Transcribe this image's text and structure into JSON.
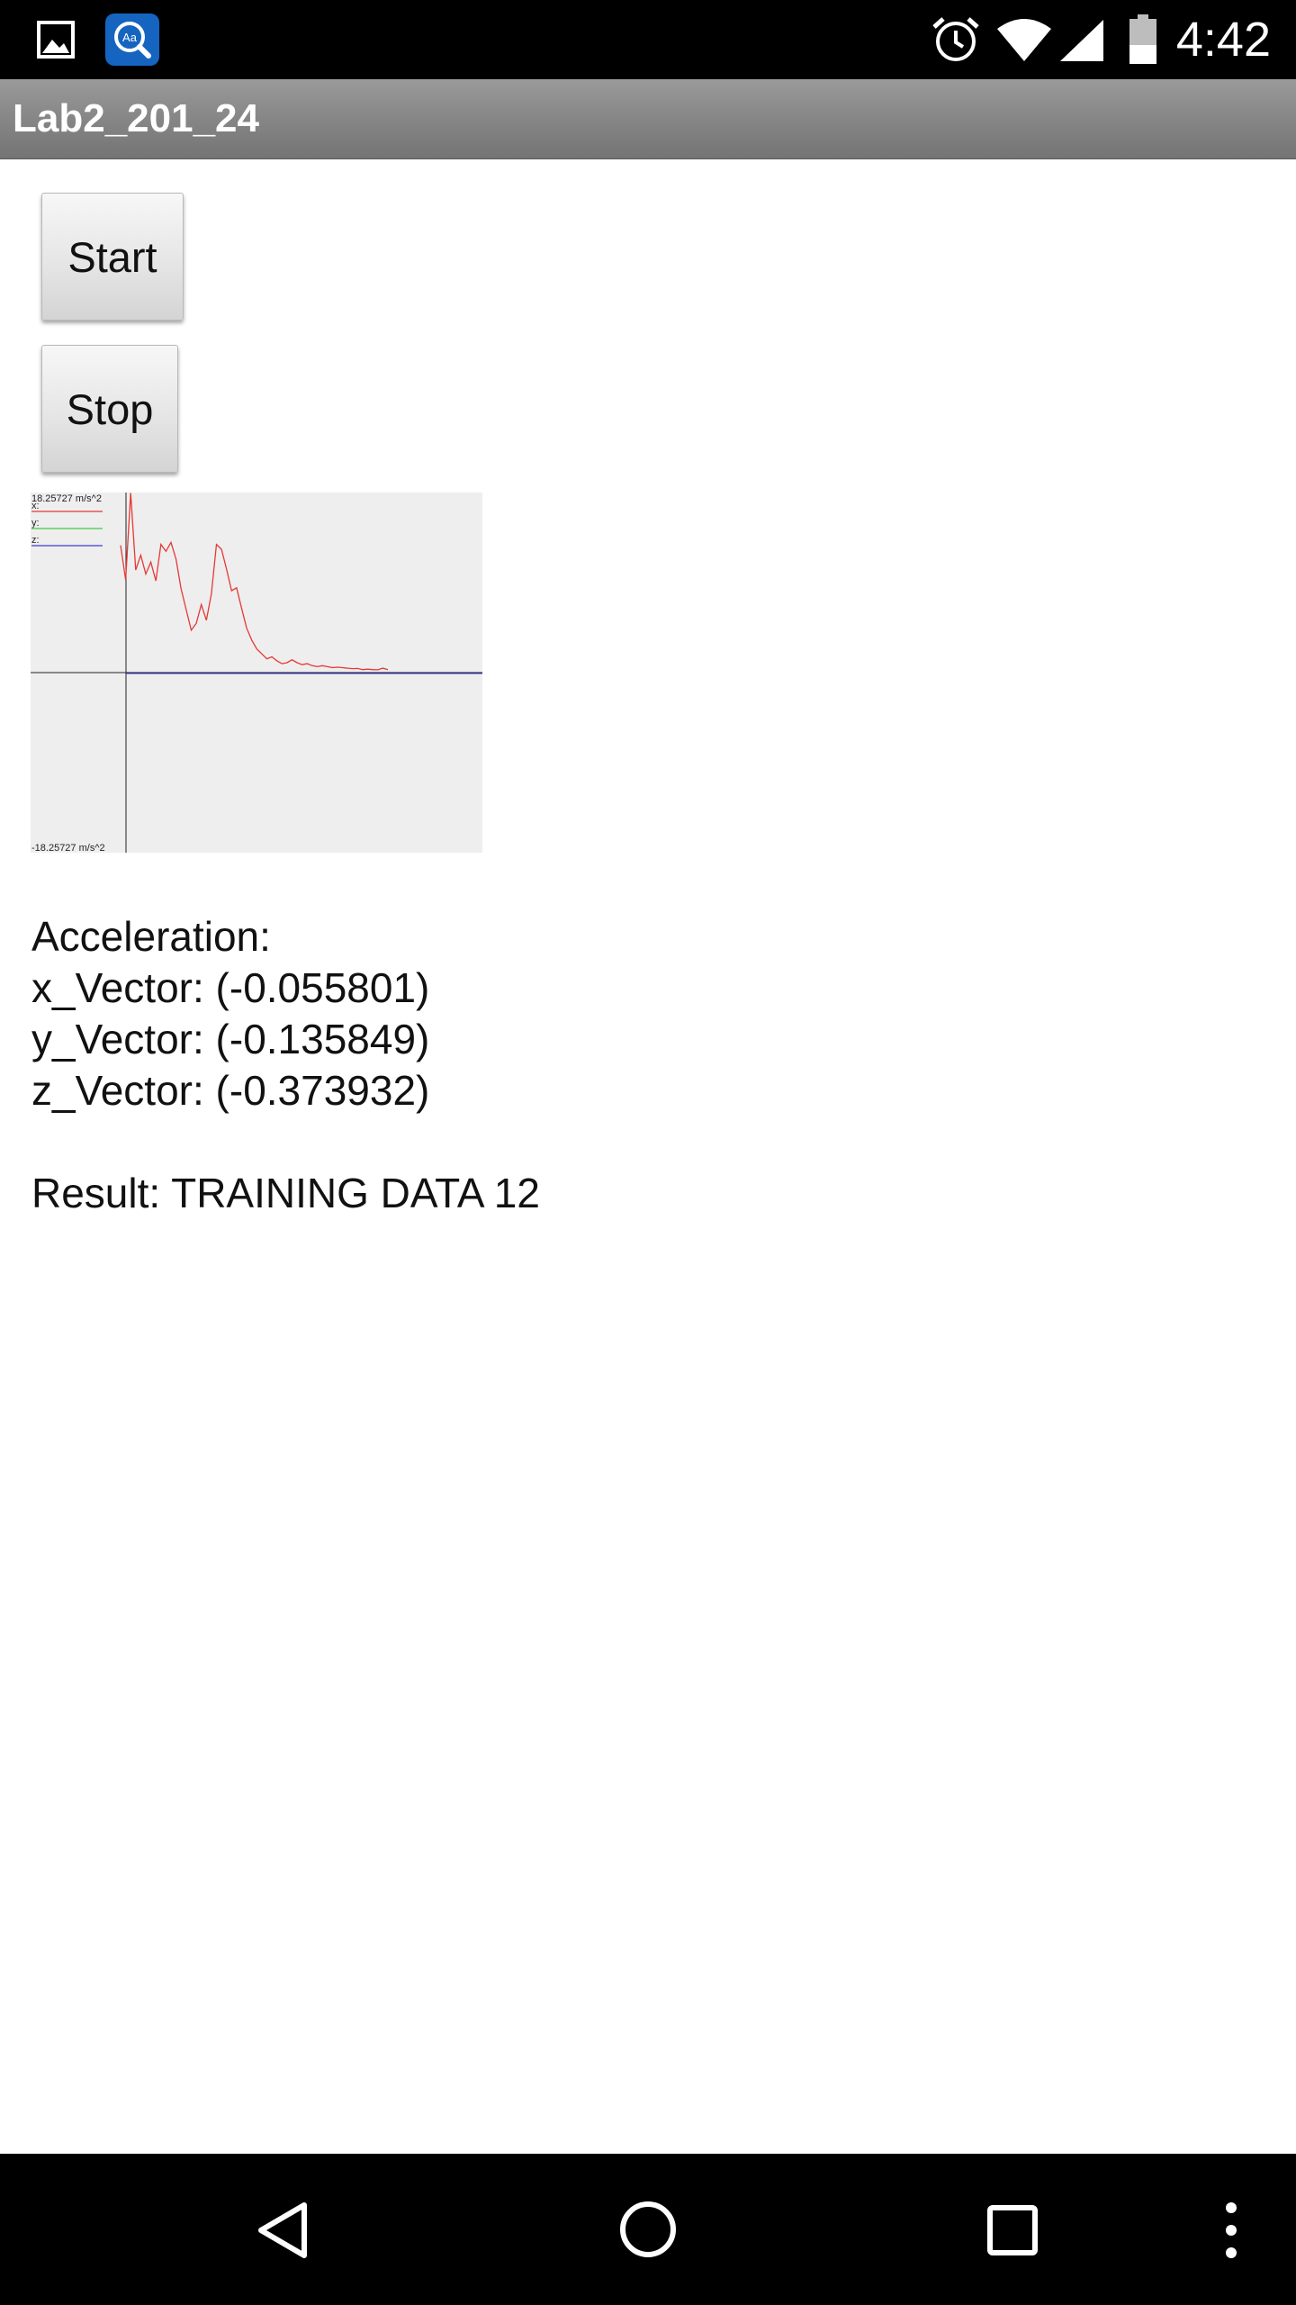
{
  "status_bar": {
    "time": "4:42",
    "icons": [
      "image-icon",
      "dictionary-app-icon",
      "alarm-icon",
      "wifi-icon",
      "cell-signal-icon",
      "battery-icon"
    ]
  },
  "app_bar": {
    "title": "Lab2_201_24"
  },
  "buttons": {
    "start_label": "Start",
    "stop_label": "Stop"
  },
  "graph": {
    "max_label": "18.25727 m/s^2",
    "min_label": "-18.25727 m/s^2",
    "legend": [
      {
        "label": "x:",
        "color": "#e53935"
      },
      {
        "label": "y:",
        "color": "#43c843"
      },
      {
        "label": "z:",
        "color": "#3b3bd6"
      }
    ]
  },
  "chart_data": {
    "type": "line",
    "ylim": [
      -18.25727,
      18.25727
    ],
    "series": [
      {
        "name": "x",
        "color": "#e53935",
        "values": [
          12.9,
          9.4,
          18.2,
          10.4,
          11.9,
          10.0,
          11.2,
          9.3,
          13.0,
          12.3,
          13.2,
          11.5,
          8.5,
          6.4,
          4.3,
          5.0,
          6.9,
          5.3,
          8.0,
          13.0,
          12.5,
          10.5,
          8.3,
          8.6,
          6.5,
          4.5,
          3.3,
          2.4,
          1.9,
          1.4,
          1.6,
          1.2,
          0.9,
          1.0,
          1.3,
          1.0,
          0.8,
          0.9,
          0.7,
          0.6,
          0.7,
          0.6,
          0.5,
          0.55,
          0.5,
          0.45,
          0.4,
          0.42,
          0.3,
          0.35,
          0.3,
          0.28,
          0.45,
          0.3
        ]
      },
      {
        "name": "y",
        "color": "#43c843",
        "values": []
      },
      {
        "name": "z",
        "color": "#3b3bd6",
        "values": []
      }
    ]
  },
  "acceleration": {
    "heading": "Acceleration:",
    "x": "x_Vector: (-0.055801)",
    "y": "y_Vector: (-0.135849)",
    "z": "z_Vector: (-0.373932)"
  },
  "result": "Result: TRAINING DATA 12",
  "nav_bar": {
    "icons": [
      "back-icon",
      "home-icon",
      "recents-icon",
      "overflow-menu-icon"
    ]
  }
}
